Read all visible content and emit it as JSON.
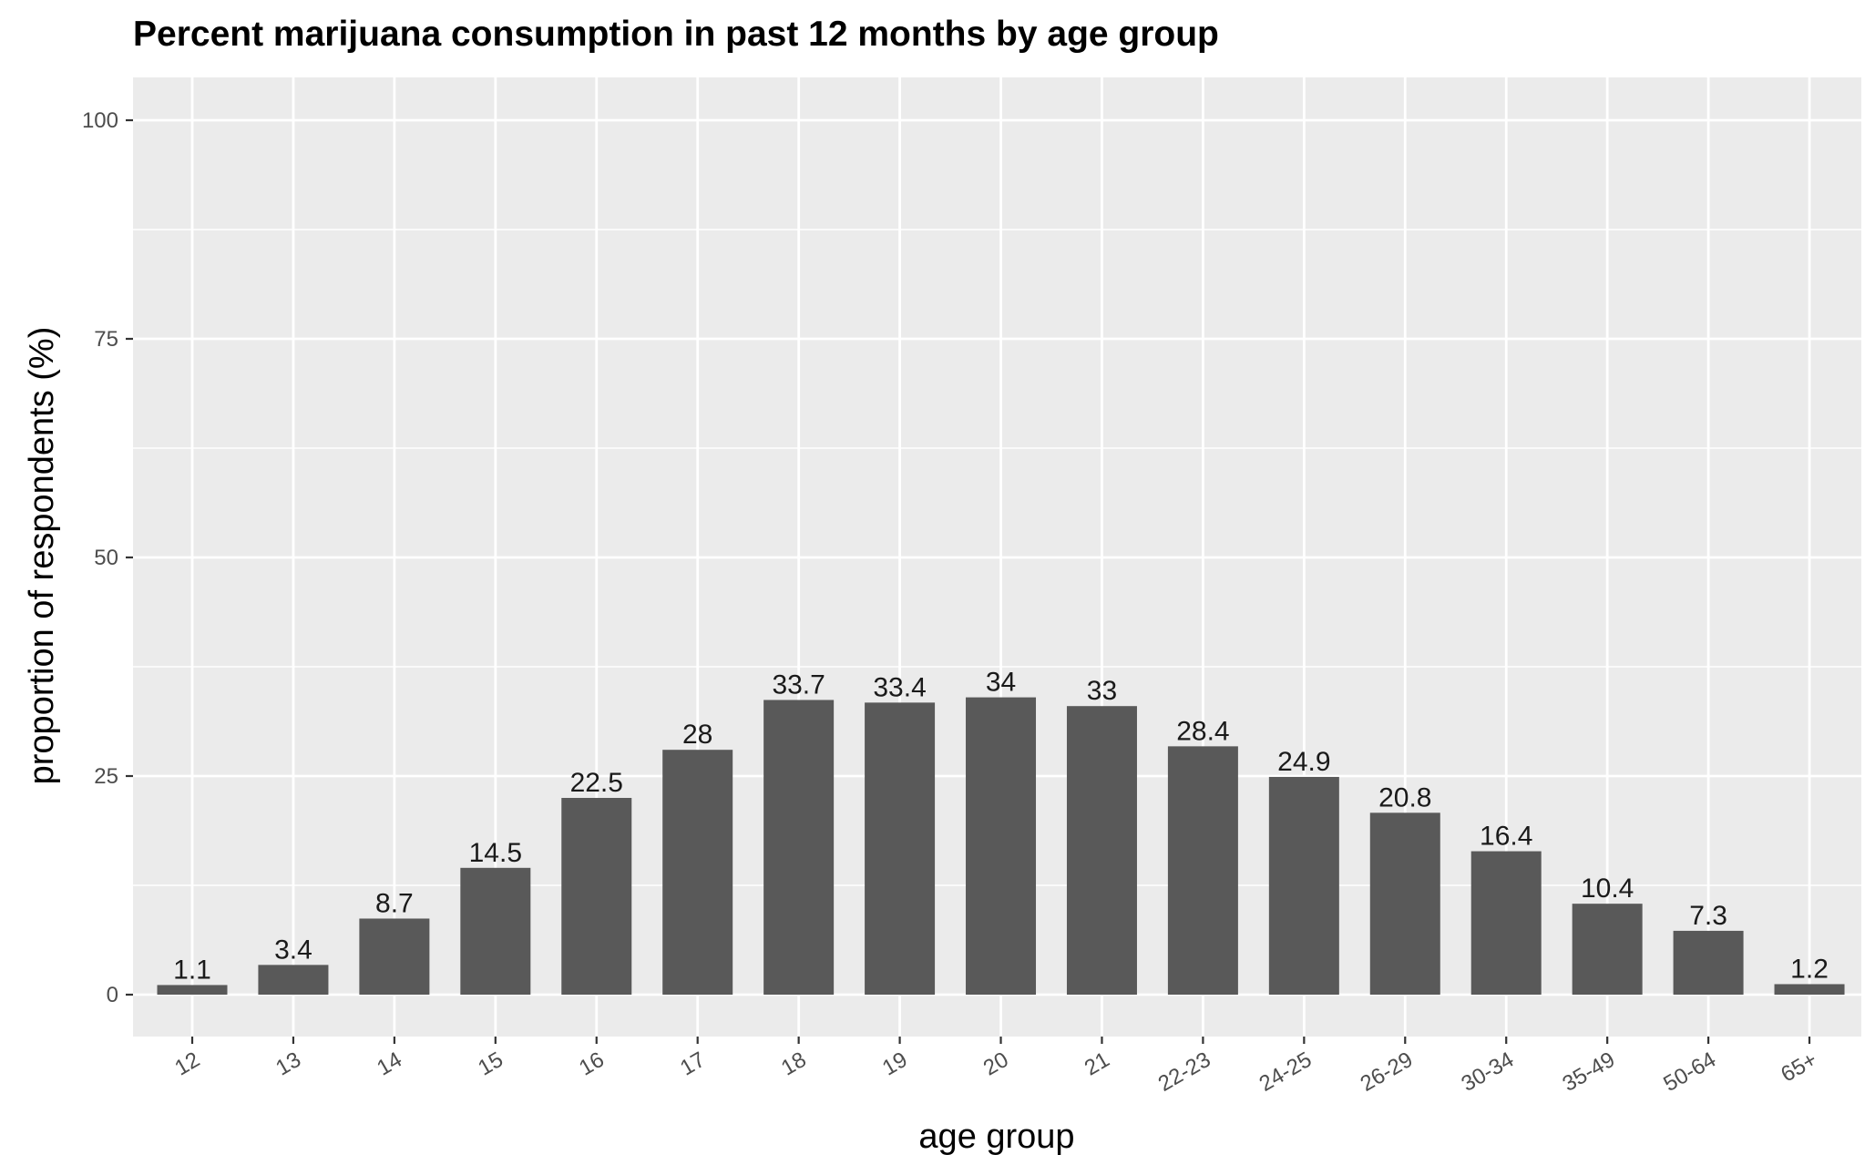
{
  "chart_data": {
    "type": "bar",
    "title": "Percent marijuana consumption in past 12 months by age group",
    "xlabel": "age group",
    "ylabel": "proportion of respondents (%)",
    "categories": [
      "12",
      "13",
      "14",
      "15",
      "16",
      "17",
      "18",
      "19",
      "20",
      "21",
      "22-23",
      "24-25",
      "26-29",
      "30-34",
      "35-49",
      "50-64",
      "65+"
    ],
    "values": [
      1.1,
      3.4,
      8.7,
      14.5,
      22.5,
      28,
      33.7,
      33.4,
      34,
      33,
      28.4,
      24.9,
      20.8,
      16.4,
      10.4,
      7.3,
      1.2
    ],
    "value_labels": [
      "1.1",
      "3.4",
      "8.7",
      "14.5",
      "22.5",
      "28",
      "33.7",
      "33.4",
      "34",
      "33",
      "28.4",
      "24.9",
      "20.8",
      "16.4",
      "10.4",
      "7.3",
      "1.2"
    ],
    "ylim": [
      0,
      100
    ],
    "y_ticks": [
      0,
      25,
      50,
      75,
      100
    ],
    "y_tick_labels": [
      "0",
      "25",
      "50",
      "75",
      "100"
    ],
    "grid": true,
    "legend": "none",
    "colors": {
      "panel_background": "#ebebeb",
      "grid": "#ffffff",
      "bar": "#595959",
      "tick_label": "#4d4d4d",
      "tick_mark": "#333333",
      "text": "#000000"
    }
  }
}
